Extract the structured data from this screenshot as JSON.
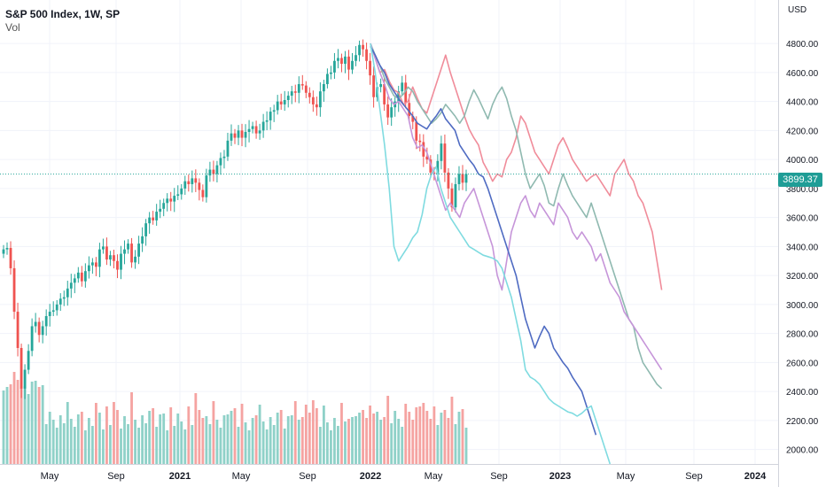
{
  "header": {
    "title": "S&P 500 Index, 1W, SP",
    "volume_label": "Vol"
  },
  "price_axis": {
    "currency": "USD",
    "last_price": "3899.37"
  },
  "chart_data": {
    "type": "line",
    "title": "S&P 500 Index, 1W, SP",
    "ylabel": "USD",
    "ylim": [
      1900,
      5100
    ],
    "x_tick_labels": [
      "May",
      "Sep",
      "2021",
      "May",
      "Sep",
      "2022",
      "May",
      "Sep",
      "2023",
      "May",
      "Sep",
      "2024"
    ],
    "y_tick_labels": [
      "2000.00",
      "2200.00",
      "2400.00",
      "2600.00",
      "2800.00",
      "3000.00",
      "3200.00",
      "3400.00",
      "3600.00",
      "3800.00",
      "4000.00",
      "4200.00",
      "4400.00",
      "4600.00",
      "4800.00"
    ],
    "last_price": 3899.37,
    "colors": {
      "up": "#26a69a",
      "down": "#ef5350",
      "vol_up": "#8fd1c8",
      "vol_down": "#f5a3a1"
    },
    "candles_close": [
      3380,
      3390,
      3250,
      2950,
      2700,
      2420,
      2550,
      2680,
      2850,
      2880,
      2790,
      2850,
      2920,
      2950,
      2960,
      3000,
      3040,
      3050,
      3110,
      3150,
      3180,
      3220,
      3160,
      3230,
      3270,
      3290,
      3260,
      3380,
      3400,
      3310,
      3340,
      3300,
      3240,
      3350,
      3380,
      3420,
      3290,
      3330,
      3420,
      3470,
      3560,
      3600,
      3580,
      3640,
      3660,
      3700,
      3730,
      3710,
      3750,
      3760,
      3800,
      3850,
      3830,
      3870,
      3840,
      3790,
      3740,
      3890,
      3930,
      3900,
      3960,
      4010,
      4020,
      4130,
      4180,
      4150,
      4200,
      4150,
      4190,
      4210,
      4230,
      4180,
      4200,
      4260,
      4270,
      4330,
      4340,
      4400,
      4380,
      4410,
      4440,
      4470,
      4460,
      4520,
      4510,
      4460,
      4430,
      4380,
      4360,
      4470,
      4520,
      4590,
      4600,
      4680,
      4700,
      4660,
      4710,
      4620,
      4680,
      4720,
      4790,
      4760,
      4680,
      4580,
      4430,
      4500,
      4520,
      4380,
      4290,
      4360,
      4400,
      4470,
      4530,
      4390,
      4300,
      4260,
      4130,
      4120,
      4020,
      4000,
      3910,
      3900,
      3990,
      4110,
      3910,
      3800,
      3670,
      3830,
      3900,
      3840,
      3900
    ],
    "overlay_series": [
      {
        "color": "#f08c9a",
        "values": [
          4800,
          4700,
          4600,
          4620,
          4540,
          4480,
          4460,
          4380,
          4400,
          4500,
          4420,
          4350,
          4320,
          4420,
          4520,
          4620,
          4720,
          4600,
          4500,
          4400,
          4300,
          4210,
          4150,
          4100,
          3980,
          3920,
          3850,
          3900,
          3880,
          4000,
          4050,
          4150,
          4300,
          4250,
          4150,
          4050,
          4000,
          3950,
          3900,
          4000,
          4100,
          4150,
          4080,
          4000,
          3950,
          3900,
          3850,
          3880,
          3900,
          3850,
          3800,
          3750,
          3900,
          3950,
          4000,
          3900,
          3850,
          3750,
          3700,
          3600,
          3500,
          3300,
          3100
        ]
      },
      {
        "color": "#8fb9b0",
        "values": [
          4800,
          4720,
          4650,
          4560,
          4500,
          4440,
          4420,
          4450,
          4500,
          4470,
          4400,
          4350,
          4300,
          4250,
          4280,
          4320,
          4380,
          4340,
          4300,
          4250,
          4300,
          4400,
          4480,
          4420,
          4350,
          4280,
          4380,
          4450,
          4500,
          4420,
          4300,
          4200,
          4050,
          3900,
          3800,
          3850,
          3900,
          3820,
          3700,
          3680,
          3800,
          3900,
          3820,
          3750,
          3700,
          3650,
          3600,
          3700,
          3600,
          3500,
          3400,
          3300,
          3200,
          3100,
          3000,
          2900,
          2850,
          2700,
          2600,
          2550,
          2500,
          2450,
          2420
        ]
      },
      {
        "color": "#c695d9",
        "values": [
          4800,
          4700,
          4600,
          4520,
          4420,
          4380,
          4400,
          4350,
          4300,
          4150,
          4080,
          4100,
          4050,
          3950,
          3850,
          3750,
          3650,
          3700,
          3650,
          3600,
          3700,
          3750,
          3800,
          3700,
          3600,
          3500,
          3400,
          3200,
          3100,
          3300,
          3500,
          3600,
          3700,
          3750,
          3650,
          3600,
          3700,
          3650,
          3600,
          3550,
          3700,
          3650,
          3600,
          3500,
          3450,
          3500,
          3450,
          3400,
          3300,
          3350,
          3250,
          3150,
          3100,
          3050,
          2950,
          2900,
          2850,
          2800,
          2750,
          2700,
          2650,
          2600,
          2550
        ]
      },
      {
        "color": "#4f6bc2",
        "values": [
          4780,
          4720,
          4650,
          4600,
          4520,
          4470,
          4420,
          4380,
          4340,
          4300,
          4250,
          4230,
          4210,
          4260,
          4300,
          4350,
          4280,
          4240,
          4200,
          4100,
          4050,
          4000,
          3960,
          3900,
          3880,
          3800,
          3700,
          3600,
          3500,
          3400,
          3300,
          3200,
          3050,
          2900,
          2800,
          2700,
          2780,
          2850,
          2800,
          2700,
          2650,
          2600,
          2560,
          2500,
          2450,
          2400,
          2300,
          2200,
          2100
        ]
      },
      {
        "color": "#7fdbe0",
        "values": [
          4800,
          4600,
          4350,
          4100,
          3800,
          3400,
          3300,
          3350,
          3400,
          3460,
          3500,
          3620,
          3800,
          3900,
          3950,
          3800,
          3700,
          3600,
          3550,
          3500,
          3450,
          3400,
          3380,
          3360,
          3340,
          3330,
          3320,
          3300,
          3250,
          3150,
          3050,
          2900,
          2750,
          2550,
          2500,
          2480,
          2450,
          2400,
          2350,
          2320,
          2300,
          2280,
          2260,
          2250,
          2230,
          2250,
          2280,
          2300,
          2200,
          2100,
          2000,
          1900
        ]
      }
    ]
  }
}
